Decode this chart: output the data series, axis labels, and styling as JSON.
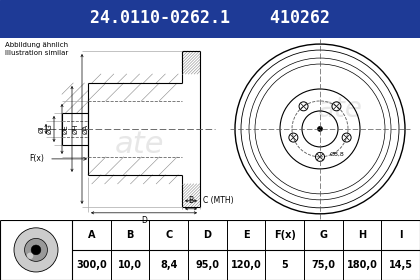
{
  "title_part": "24.0110-0262.1",
  "title_ref": "410262",
  "header_bg": "#1e3a96",
  "header_text_color": "#ffffff",
  "body_bg": "#ffffff",
  "table_header": [
    "A",
    "B",
    "C",
    "D",
    "E",
    "F(x)",
    "G",
    "H",
    "I"
  ],
  "table_values": [
    "300,0",
    "10,0",
    "8,4",
    "95,0",
    "120,0",
    "5",
    "75,0",
    "180,0",
    "14,5"
  ],
  "note_line1": "Abbildung ähnlich",
  "note_line2": "Illustration similar",
  "small_label": "Ø8,8",
  "fx_label": "F(x)",
  "watermark": "ate",
  "hatch_color": "#888888",
  "dim_color": "#000000",
  "line_color": "#000000",
  "center_line_color": "#555555"
}
